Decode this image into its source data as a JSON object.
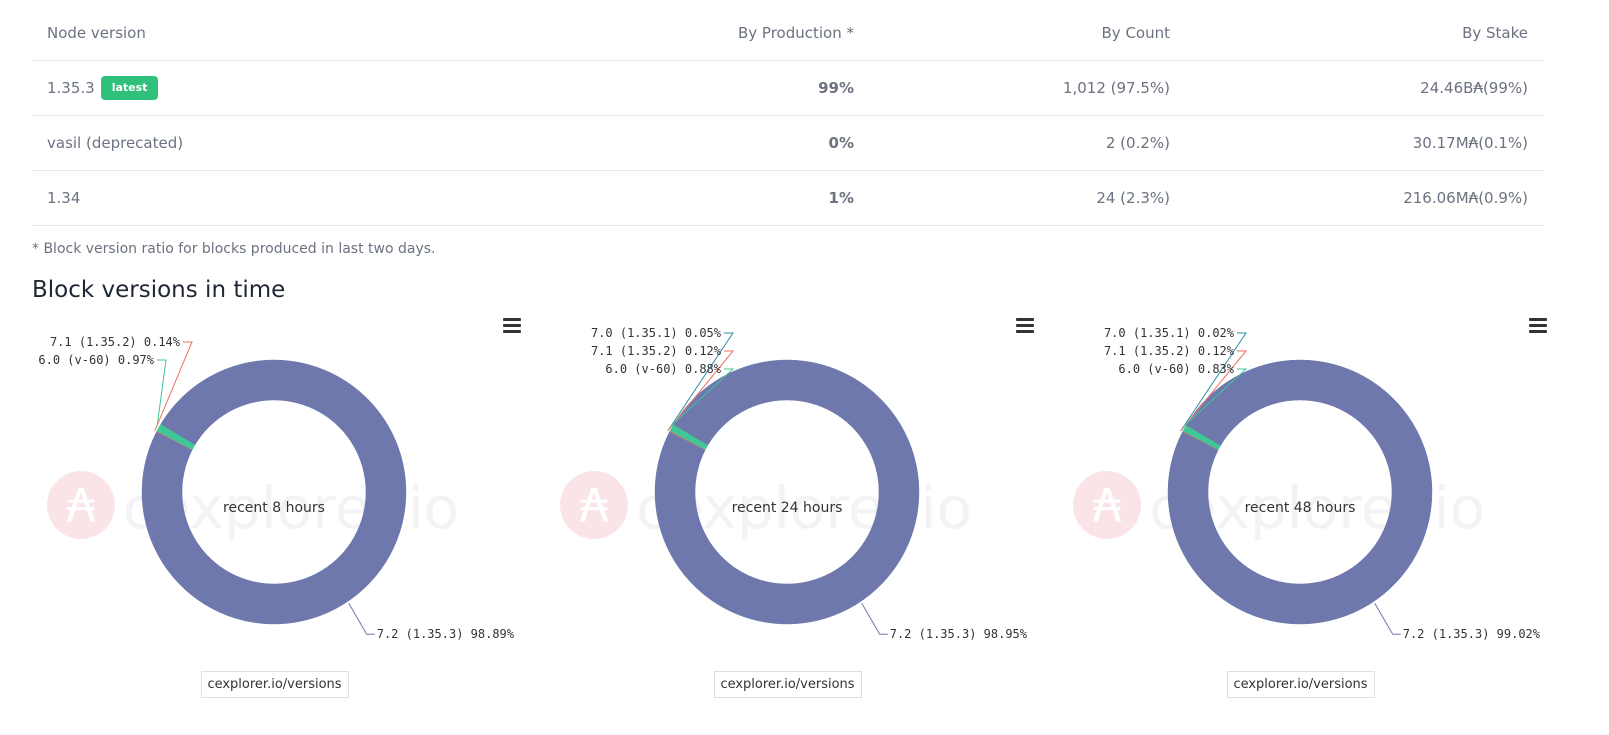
{
  "table": {
    "headers": [
      "Node version",
      "By Production *",
      "By Count",
      "By Stake"
    ],
    "badge": "latest",
    "rows": [
      {
        "version": "1.35.3",
        "production": "99%",
        "count": "1,012 (97.5%)",
        "stake_num": "24.46B",
        "stake_sym": "₳",
        "stake_pct": " (99%)"
      },
      {
        "version": "vasil (deprecated)",
        "production": "0%",
        "count": "2 (0.2%)",
        "stake_num": "30.17M",
        "stake_sym": "₳",
        "stake_pct": " (0.1%)"
      },
      {
        "version": "1.34",
        "production": "1%",
        "count": "24 (2.3%)",
        "stake_num": "216.06M",
        "stake_sym": "₳",
        "stake_pct": " (0.9%)"
      }
    ]
  },
  "footnote": "* Block version ratio for blocks produced in last two days.",
  "section_title": "Block versions in time",
  "watermark": {
    "symbol": "₳",
    "text": "cexplorer.io"
  },
  "colors": {
    "main": "#6e78ad",
    "green": "#3ec797",
    "red": "#ef6f5e",
    "teal": "#2a8fa3",
    "badge": "#2fc17b"
  },
  "chart_data": [
    {
      "type": "pie",
      "center_label": "recent 8 hours",
      "credit": "cexplorer.io/versions",
      "slices": [
        {
          "label": "7.2  (1.35.3) 98.89%",
          "value": 98.89,
          "color": "#6e78ad"
        },
        {
          "label": "6.0  (v-60) 0.97%",
          "value": 0.97,
          "color": "#3ec797"
        },
        {
          "label": "7.1  (1.35.2) 0.14%",
          "value": 0.14,
          "color": "#ef6f5e"
        }
      ]
    },
    {
      "type": "pie",
      "center_label": "recent 24 hours",
      "credit": "cexplorer.io/versions",
      "slices": [
        {
          "label": "7.2  (1.35.3) 98.95%",
          "value": 98.95,
          "color": "#6e78ad"
        },
        {
          "label": "6.0  (v-60) 0.88%",
          "value": 0.88,
          "color": "#3ec797"
        },
        {
          "label": "7.1  (1.35.2) 0.12%",
          "value": 0.12,
          "color": "#ef6f5e"
        },
        {
          "label": "7.0  (1.35.1) 0.05%",
          "value": 0.05,
          "color": "#2a8fa3"
        }
      ]
    },
    {
      "type": "pie",
      "center_label": "recent 48 hours",
      "credit": "cexplorer.io/versions",
      "slices": [
        {
          "label": "7.2  (1.35.3) 99.02%",
          "value": 99.02,
          "color": "#6e78ad"
        },
        {
          "label": "6.0  (v-60) 0.83%",
          "value": 0.83,
          "color": "#3ec797"
        },
        {
          "label": "7.1  (1.35.2) 0.12%",
          "value": 0.12,
          "color": "#ef6f5e"
        },
        {
          "label": "7.0  (1.35.1) 0.02%",
          "value": 0.02,
          "color": "#2a8fa3"
        }
      ]
    }
  ]
}
